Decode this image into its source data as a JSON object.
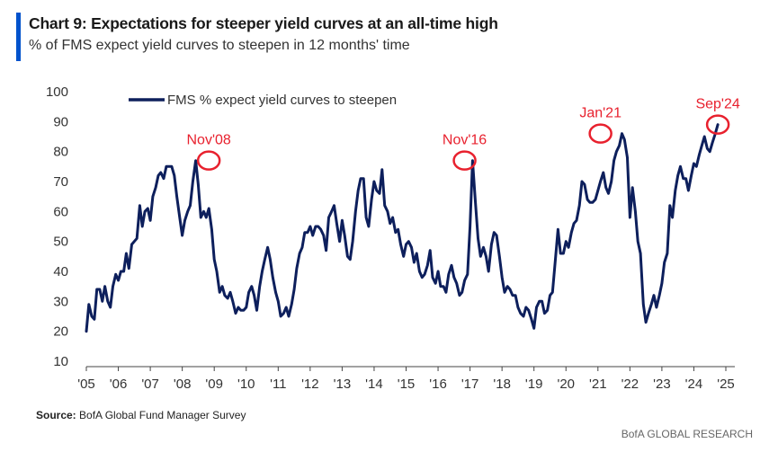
{
  "header": {
    "title": "Chart 9: Expectations for steeper yield curves at an all-time high",
    "subtitle": "% of FMS expect yield curves to steepen in 12 months' time"
  },
  "footer": {
    "source_label": "Source:",
    "source_text": "BofA Global Fund Manager Survey",
    "brand": "BofA GLOBAL RESEARCH"
  },
  "colors": {
    "line": "#0d1f5c",
    "annotation": "#e8212e",
    "accent": "#0052cc"
  },
  "chart_data": {
    "type": "line",
    "title": "",
    "xlabel": "",
    "ylabel": "",
    "ylim": [
      10,
      100
    ],
    "xlim": [
      2005.0,
      2025.0
    ],
    "y_ticks": [
      10,
      20,
      30,
      40,
      50,
      60,
      70,
      80,
      90,
      100
    ],
    "x_ticks": [
      {
        "value": 2005,
        "label": "'05"
      },
      {
        "value": 2006,
        "label": "'06"
      },
      {
        "value": 2007,
        "label": "'07"
      },
      {
        "value": 2008,
        "label": "'08"
      },
      {
        "value": 2009,
        "label": "'09"
      },
      {
        "value": 2010,
        "label": "'10"
      },
      {
        "value": 2011,
        "label": "'11"
      },
      {
        "value": 2012,
        "label": "'12"
      },
      {
        "value": 2013,
        "label": "'13"
      },
      {
        "value": 2014,
        "label": "'14"
      },
      {
        "value": 2015,
        "label": "'15"
      },
      {
        "value": 2016,
        "label": "'16"
      },
      {
        "value": 2017,
        "label": "'17"
      },
      {
        "value": 2018,
        "label": "'18"
      },
      {
        "value": 2019,
        "label": "'19"
      },
      {
        "value": 2020,
        "label": "'20"
      },
      {
        "value": 2021,
        "label": "'21"
      },
      {
        "value": 2022,
        "label": "'22"
      },
      {
        "value": 2023,
        "label": "'23"
      },
      {
        "value": 2024,
        "label": "'24"
      },
      {
        "value": 2025,
        "label": "'25"
      }
    ],
    "grid": false,
    "legend_position": "top-left",
    "series": [
      {
        "name": "FMS % expect yield curves to steepen",
        "x": [
          2005.0,
          2005.08,
          2005.17,
          2005.25,
          2005.33,
          2005.42,
          2005.5,
          2005.58,
          2005.67,
          2005.75,
          2005.83,
          2005.92,
          2006.0,
          2006.08,
          2006.17,
          2006.25,
          2006.33,
          2006.42,
          2006.5,
          2006.58,
          2006.67,
          2006.75,
          2006.83,
          2006.92,
          2007.0,
          2007.08,
          2007.17,
          2007.25,
          2007.33,
          2007.42,
          2007.5,
          2007.58,
          2007.67,
          2007.75,
          2007.83,
          2007.92,
          2008.0,
          2008.08,
          2008.17,
          2008.25,
          2008.33,
          2008.42,
          2008.5,
          2008.58,
          2008.67,
          2008.75,
          2008.83,
          2008.92,
          2009.0,
          2009.08,
          2009.17,
          2009.25,
          2009.33,
          2009.42,
          2009.5,
          2009.58,
          2009.67,
          2009.75,
          2009.83,
          2009.92,
          2010.0,
          2010.08,
          2010.17,
          2010.25,
          2010.33,
          2010.42,
          2010.5,
          2010.58,
          2010.67,
          2010.75,
          2010.83,
          2010.92,
          2011.0,
          2011.08,
          2011.17,
          2011.25,
          2011.33,
          2011.42,
          2011.5,
          2011.58,
          2011.67,
          2011.75,
          2011.83,
          2011.92,
          2012.0,
          2012.08,
          2012.17,
          2012.25,
          2012.33,
          2012.42,
          2012.5,
          2012.58,
          2012.67,
          2012.75,
          2012.83,
          2012.92,
          2013.0,
          2013.08,
          2013.17,
          2013.25,
          2013.33,
          2013.42,
          2013.5,
          2013.58,
          2013.67,
          2013.75,
          2013.83,
          2013.92,
          2014.0,
          2014.08,
          2014.17,
          2014.25,
          2014.33,
          2014.42,
          2014.5,
          2014.58,
          2014.67,
          2014.75,
          2014.83,
          2014.92,
          2015.0,
          2015.08,
          2015.17,
          2015.25,
          2015.33,
          2015.42,
          2015.5,
          2015.58,
          2015.67,
          2015.75,
          2015.83,
          2015.92,
          2016.0,
          2016.08,
          2016.17,
          2016.25,
          2016.33,
          2016.42,
          2016.5,
          2016.58,
          2016.67,
          2016.75,
          2016.83,
          2016.92,
          2017.0,
          2017.08,
          2017.17,
          2017.25,
          2017.33,
          2017.42,
          2017.5,
          2017.58,
          2017.67,
          2017.75,
          2017.83,
          2017.92,
          2018.0,
          2018.08,
          2018.17,
          2018.25,
          2018.33,
          2018.42,
          2018.5,
          2018.58,
          2018.67,
          2018.75,
          2018.83,
          2018.92,
          2019.0,
          2019.08,
          2019.17,
          2019.25,
          2019.33,
          2019.42,
          2019.5,
          2019.58,
          2019.67,
          2019.75,
          2019.83,
          2019.92,
          2020.0,
          2020.08,
          2020.17,
          2020.25,
          2020.33,
          2020.42,
          2020.5,
          2020.58,
          2020.67,
          2020.75,
          2020.83,
          2020.92,
          2021.0,
          2021.08,
          2021.17,
          2021.25,
          2021.33,
          2021.42,
          2021.5,
          2021.58,
          2021.67,
          2021.75,
          2021.83,
          2021.92,
          2022.0,
          2022.08,
          2022.17,
          2022.25,
          2022.33,
          2022.42,
          2022.5,
          2022.58,
          2022.67,
          2022.75,
          2022.83,
          2022.92,
          2023.0,
          2023.08,
          2023.17,
          2023.25,
          2023.33,
          2023.42,
          2023.5,
          2023.58,
          2023.67,
          2023.75,
          2023.83,
          2023.92,
          2024.0,
          2024.08,
          2024.17,
          2024.25,
          2024.33,
          2024.42,
          2024.5,
          2024.58,
          2024.67,
          2024.75
        ],
        "values": [
          20,
          29,
          25,
          24,
          34,
          34,
          30,
          35,
          30,
          28,
          35,
          39,
          37,
          40,
          40,
          46,
          41,
          49,
          50,
          51,
          62,
          55,
          60,
          61,
          57,
          65,
          68,
          72,
          73,
          71,
          75,
          75,
          75,
          72,
          65,
          58,
          52,
          57,
          60,
          62,
          70,
          77,
          69,
          58,
          60,
          58,
          61,
          54,
          44,
          40,
          33,
          35,
          32,
          31,
          33,
          30,
          26,
          28,
          27,
          27,
          28,
          33,
          35,
          32,
          27,
          35,
          40,
          44,
          48,
          44,
          38,
          33,
          30,
          25,
          26,
          28,
          25,
          29,
          34,
          41,
          46,
          48,
          53,
          53,
          55,
          52,
          55,
          55,
          54,
          52,
          47,
          58,
          60,
          62,
          56,
          50,
          57,
          52,
          45,
          44,
          50,
          60,
          67,
          71,
          71,
          58,
          55,
          64,
          70,
          67,
          66,
          74,
          62,
          60,
          56,
          58,
          53,
          54,
          49,
          45,
          49,
          50,
          48,
          43,
          46,
          40,
          38,
          39,
          42,
          47,
          38,
          36,
          40,
          35,
          35,
          33,
          39,
          42,
          38,
          36,
          32,
          33,
          37,
          39,
          55,
          77,
          63,
          51,
          45,
          48,
          45,
          40,
          49,
          53,
          52,
          45,
          38,
          33,
          35,
          34,
          32,
          32,
          28,
          26,
          25,
          28,
          27,
          24,
          21,
          28,
          30,
          30,
          26,
          27,
          32,
          33,
          44,
          54,
          46,
          46,
          50,
          48,
          53,
          56,
          57,
          62,
          70,
          69,
          64,
          63,
          63,
          64,
          67,
          70,
          73,
          68,
          66,
          70,
          77,
          80,
          82,
          86,
          84,
          78,
          58,
          68,
          60,
          50,
          46,
          29,
          23,
          26,
          29,
          32,
          28,
          32,
          36,
          43,
          46,
          62,
          58,
          67,
          72,
          75,
          71,
          71,
          67,
          72,
          76,
          75,
          79,
          82,
          85,
          81,
          80,
          83,
          86,
          89
        ]
      }
    ],
    "annotations": [
      {
        "label": "Nov'08",
        "x": 2008.83,
        "y": 77
      },
      {
        "label": "Nov'16",
        "x": 2016.83,
        "y": 77
      },
      {
        "label": "Jan'21",
        "x": 2021.08,
        "y": 86
      },
      {
        "label": "Sep'24",
        "x": 2024.75,
        "y": 89
      }
    ]
  }
}
